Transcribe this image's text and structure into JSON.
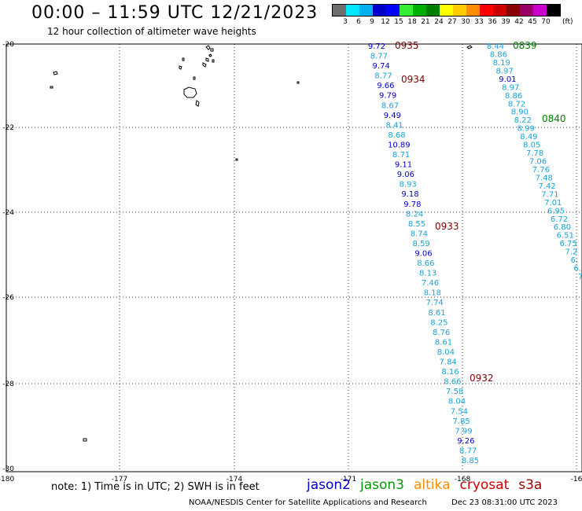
{
  "title": "00:00 – 11:59 UTC 12/21/2023",
  "subtitle": "12 hour collection of altimeter wave heights",
  "legend": {
    "unit": "(ft)",
    "ticks": [
      "3",
      "6",
      "9",
      "12",
      "15",
      "18",
      "21",
      "24",
      "27",
      "30",
      "33",
      "36",
      "39",
      "42",
      "45",
      "70"
    ],
    "colors": [
      "#6e6e6e",
      "#00e5ff",
      "#00b0f0",
      "#0000cc",
      "#0000ff",
      "#33ee33",
      "#00b000",
      "#008000",
      "#ffff00",
      "#ffcc00",
      "#ff8c00",
      "#ff0000",
      "#cc0000",
      "#8b0000",
      "#990066",
      "#cc00cc",
      "#000000"
    ]
  },
  "map": {
    "lon_range": [
      -180,
      -165
    ],
    "lat_range": [
      -30,
      -20
    ],
    "lon_labels": [
      "-180",
      "-177",
      "-174",
      "-171",
      "-168",
      "-16"
    ],
    "lat_labels": [
      "-20",
      "-22",
      "-24",
      "-26",
      "-28",
      "-30"
    ],
    "gridlines": true,
    "tracks": [
      {
        "satellite": "cryosat",
        "color": "#800000",
        "time_labels": [
          "0935",
          "0934",
          "0933",
          "0932"
        ]
      },
      {
        "satellite": "jason3",
        "color": "#008000",
        "time_labels": [
          "0839",
          "0840"
        ]
      }
    ],
    "track1_values": [
      [
        "9.72",
        "#0000cc"
      ],
      [
        "8.77",
        "#1aa3d9"
      ],
      [
        "9.74",
        "#0000cc"
      ],
      [
        "8.77",
        "#1aa3d9"
      ],
      [
        "9.66",
        "#0000cc"
      ],
      [
        "9.79",
        "#0000cc"
      ],
      [
        "8.67",
        "#1aa3d9"
      ],
      [
        "9.49",
        "#0000cc"
      ],
      [
        "8.41",
        "#1aa3d9"
      ],
      [
        "8.68",
        "#1aa3d9"
      ],
      [
        "10.89",
        "#0000cc"
      ],
      [
        "8.71",
        "#1aa3d9"
      ],
      [
        "9.11",
        "#0000cc"
      ],
      [
        "9.06",
        "#0000cc"
      ],
      [
        "8.93",
        "#1aa3d9"
      ],
      [
        "9.18",
        "#0000cc"
      ],
      [
        "9.78",
        "#0000cc"
      ],
      [
        "8.24",
        "#1aa3d9"
      ],
      [
        "8.55",
        "#1aa3d9"
      ],
      [
        "8.74",
        "#1aa3d9"
      ],
      [
        "8.59",
        "#1aa3d9"
      ],
      [
        "9.06",
        "#0000cc"
      ],
      [
        "8.66",
        "#1aa3d9"
      ],
      [
        "8.13",
        "#1aa3d9"
      ],
      [
        "7.46",
        "#1aa3d9"
      ],
      [
        "8.18",
        "#1aa3d9"
      ],
      [
        "7.74",
        "#1aa3d9"
      ],
      [
        "8.61",
        "#1aa3d9"
      ],
      [
        "8.25",
        "#1aa3d9"
      ],
      [
        "8.76",
        "#1aa3d9"
      ],
      [
        "8.61",
        "#1aa3d9"
      ],
      [
        "8.04",
        "#1aa3d9"
      ],
      [
        "7.84",
        "#1aa3d9"
      ],
      [
        "8.16",
        "#1aa3d9"
      ],
      [
        "8.66",
        "#1aa3d9"
      ],
      [
        "7.58",
        "#1aa3d9"
      ],
      [
        "8.04",
        "#1aa3d9"
      ],
      [
        "7.54",
        "#1aa3d9"
      ],
      [
        "7.85",
        "#1aa3d9"
      ],
      [
        "7.99",
        "#1aa3d9"
      ],
      [
        "9.26",
        "#0000cc"
      ],
      [
        "8.77",
        "#1aa3d9"
      ],
      [
        "8.85",
        "#1aa3d9"
      ]
    ],
    "track2_values": [
      [
        "8.44",
        "#1aa3d9"
      ],
      [
        "8.86",
        "#1aa3d9"
      ],
      [
        "8.19",
        "#1aa3d9"
      ],
      [
        "8.97",
        "#1aa3d9"
      ],
      [
        "9.01",
        "#0000cc"
      ],
      [
        "8.97",
        "#1aa3d9"
      ],
      [
        "8.86",
        "#1aa3d9"
      ],
      [
        "8.72",
        "#1aa3d9"
      ],
      [
        "8.90",
        "#1aa3d9"
      ],
      [
        "8.22",
        "#1aa3d9"
      ],
      [
        "8.99",
        "#1aa3d9"
      ],
      [
        "8.49",
        "#1aa3d9"
      ],
      [
        "8.05",
        "#1aa3d9"
      ],
      [
        "7.78",
        "#1aa3d9"
      ],
      [
        "7.06",
        "#1aa3d9"
      ],
      [
        "7.76",
        "#1aa3d9"
      ],
      [
        "7.48",
        "#1aa3d9"
      ],
      [
        "7.42",
        "#1aa3d9"
      ],
      [
        "7.71",
        "#1aa3d9"
      ],
      [
        "7.01",
        "#1aa3d9"
      ],
      [
        "6.95",
        "#1aa3d9"
      ],
      [
        "6.72",
        "#1aa3d9"
      ],
      [
        "6.80",
        "#1aa3d9"
      ],
      [
        "6.51",
        "#1aa3d9"
      ],
      [
        "6.75",
        "#1aa3d9"
      ],
      [
        "7.2",
        "#1aa3d9"
      ],
      [
        "6.",
        "#1aa3d9"
      ],
      [
        "6.",
        "#1aa3d9"
      ],
      [
        "7",
        "#1aa3d9"
      ]
    ]
  },
  "note": "note:  1) Time is in UTC;  2) SWH is in feet",
  "missions": [
    {
      "name": "jason2",
      "color": "#0000cc"
    },
    {
      "name": "jason3",
      "color": "#009900"
    },
    {
      "name": "altika",
      "color": "#ff8c00"
    },
    {
      "name": "cryosat",
      "color": "#cc0000"
    },
    {
      "name": "s3a",
      "color": "#990000"
    }
  ],
  "credit": "NOAA/NESDIS Center for Satellite Applications and Research",
  "timestamp": "Dec 23 08:31:00 UTC 2023"
}
